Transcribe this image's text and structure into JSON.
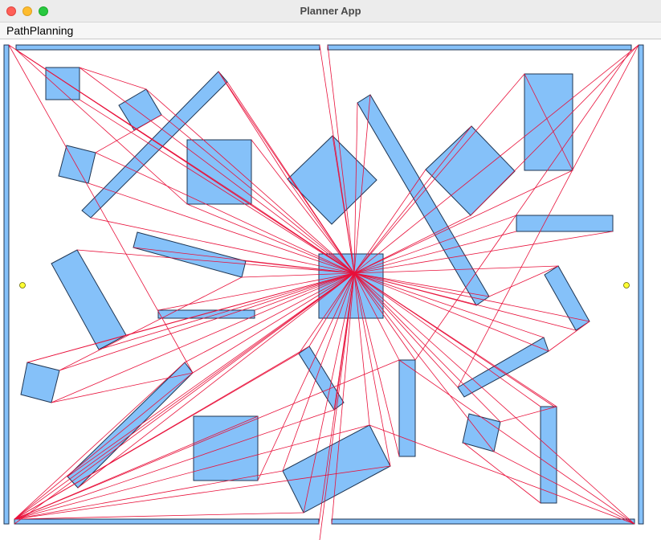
{
  "window": {
    "title": "Planner App"
  },
  "menubar": {
    "items": [
      {
        "label": "PathPlanning"
      }
    ]
  },
  "colors": {
    "obstacle_fill": "#85c1f9",
    "obstacle_stroke": "#1f3552",
    "path_line": "#e8103a",
    "endpoint_fill": "#ffff33",
    "endpoint_stroke": "#666600",
    "menubar_bg": "#f6f6f6",
    "titlebar_bg": "#ececec"
  },
  "icons": [
    "close-icon",
    "minimize-icon",
    "maximize-icon"
  ]
}
